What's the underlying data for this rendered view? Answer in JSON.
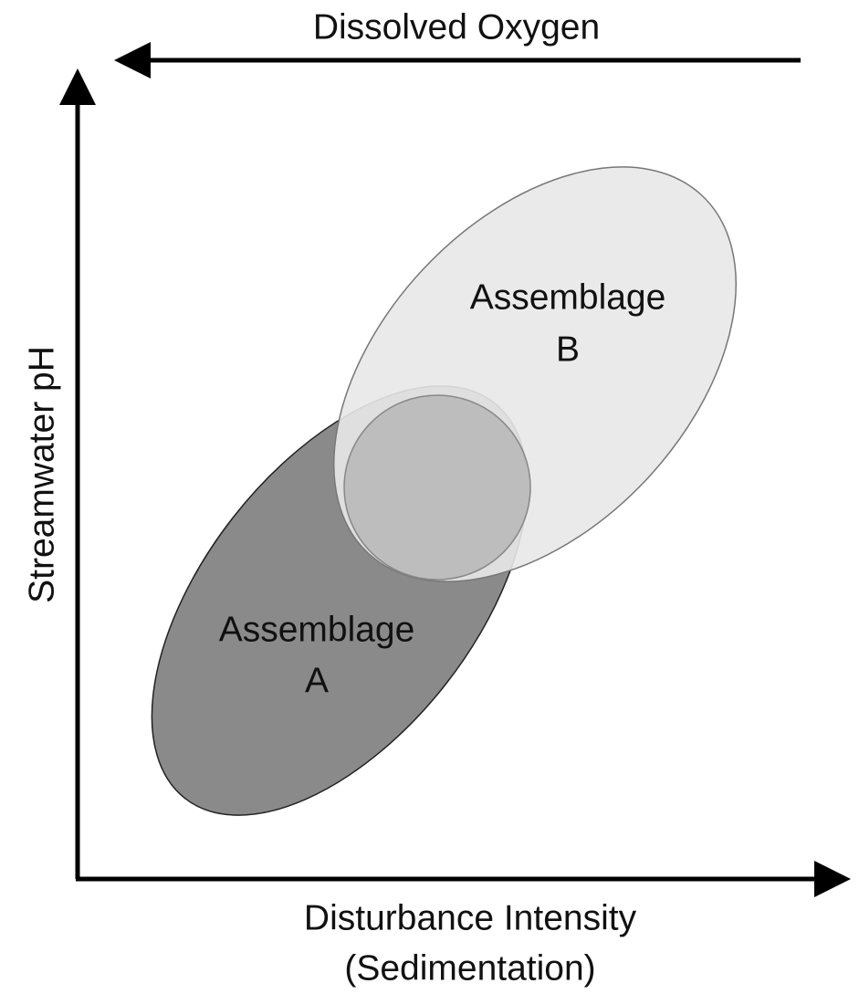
{
  "axes": {
    "top": "Dissolved Oxygen",
    "y": "Streamwater pH",
    "x": [
      "Disturbance Intensity",
      "(Sedimentation)"
    ]
  },
  "regions": [
    {
      "label": [
        "Assemblage",
        "A"
      ]
    },
    {
      "label": [
        "Assemblage",
        "B"
      ]
    }
  ]
}
